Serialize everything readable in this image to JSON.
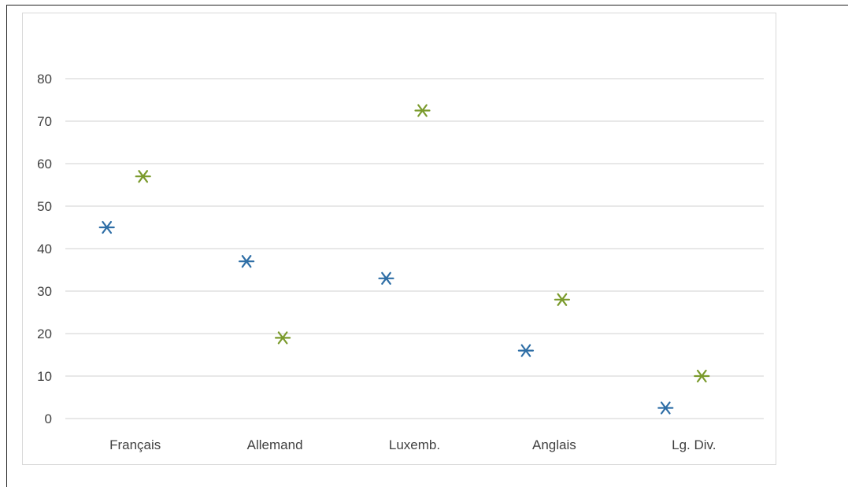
{
  "chart_data": {
    "type": "scatter",
    "title": "",
    "xlabel": "",
    "ylabel": "",
    "categories": [
      "Français",
      "Allemand",
      "Luxemb.",
      "Anglais",
      "Lg. Div."
    ],
    "ylim": [
      0,
      80
    ],
    "yticks": [
      "0",
      "10",
      "20",
      "30",
      "40",
      "50",
      "60",
      "70",
      "80"
    ],
    "grid": true,
    "legend": "none",
    "marker": "asterisk",
    "series": [
      {
        "color": "#2e6ea6",
        "values": [
          45,
          37,
          33,
          16,
          2.5
        ]
      },
      {
        "color": "#7a9a2c",
        "values": [
          57,
          19,
          72.5,
          28,
          10
        ]
      }
    ]
  }
}
